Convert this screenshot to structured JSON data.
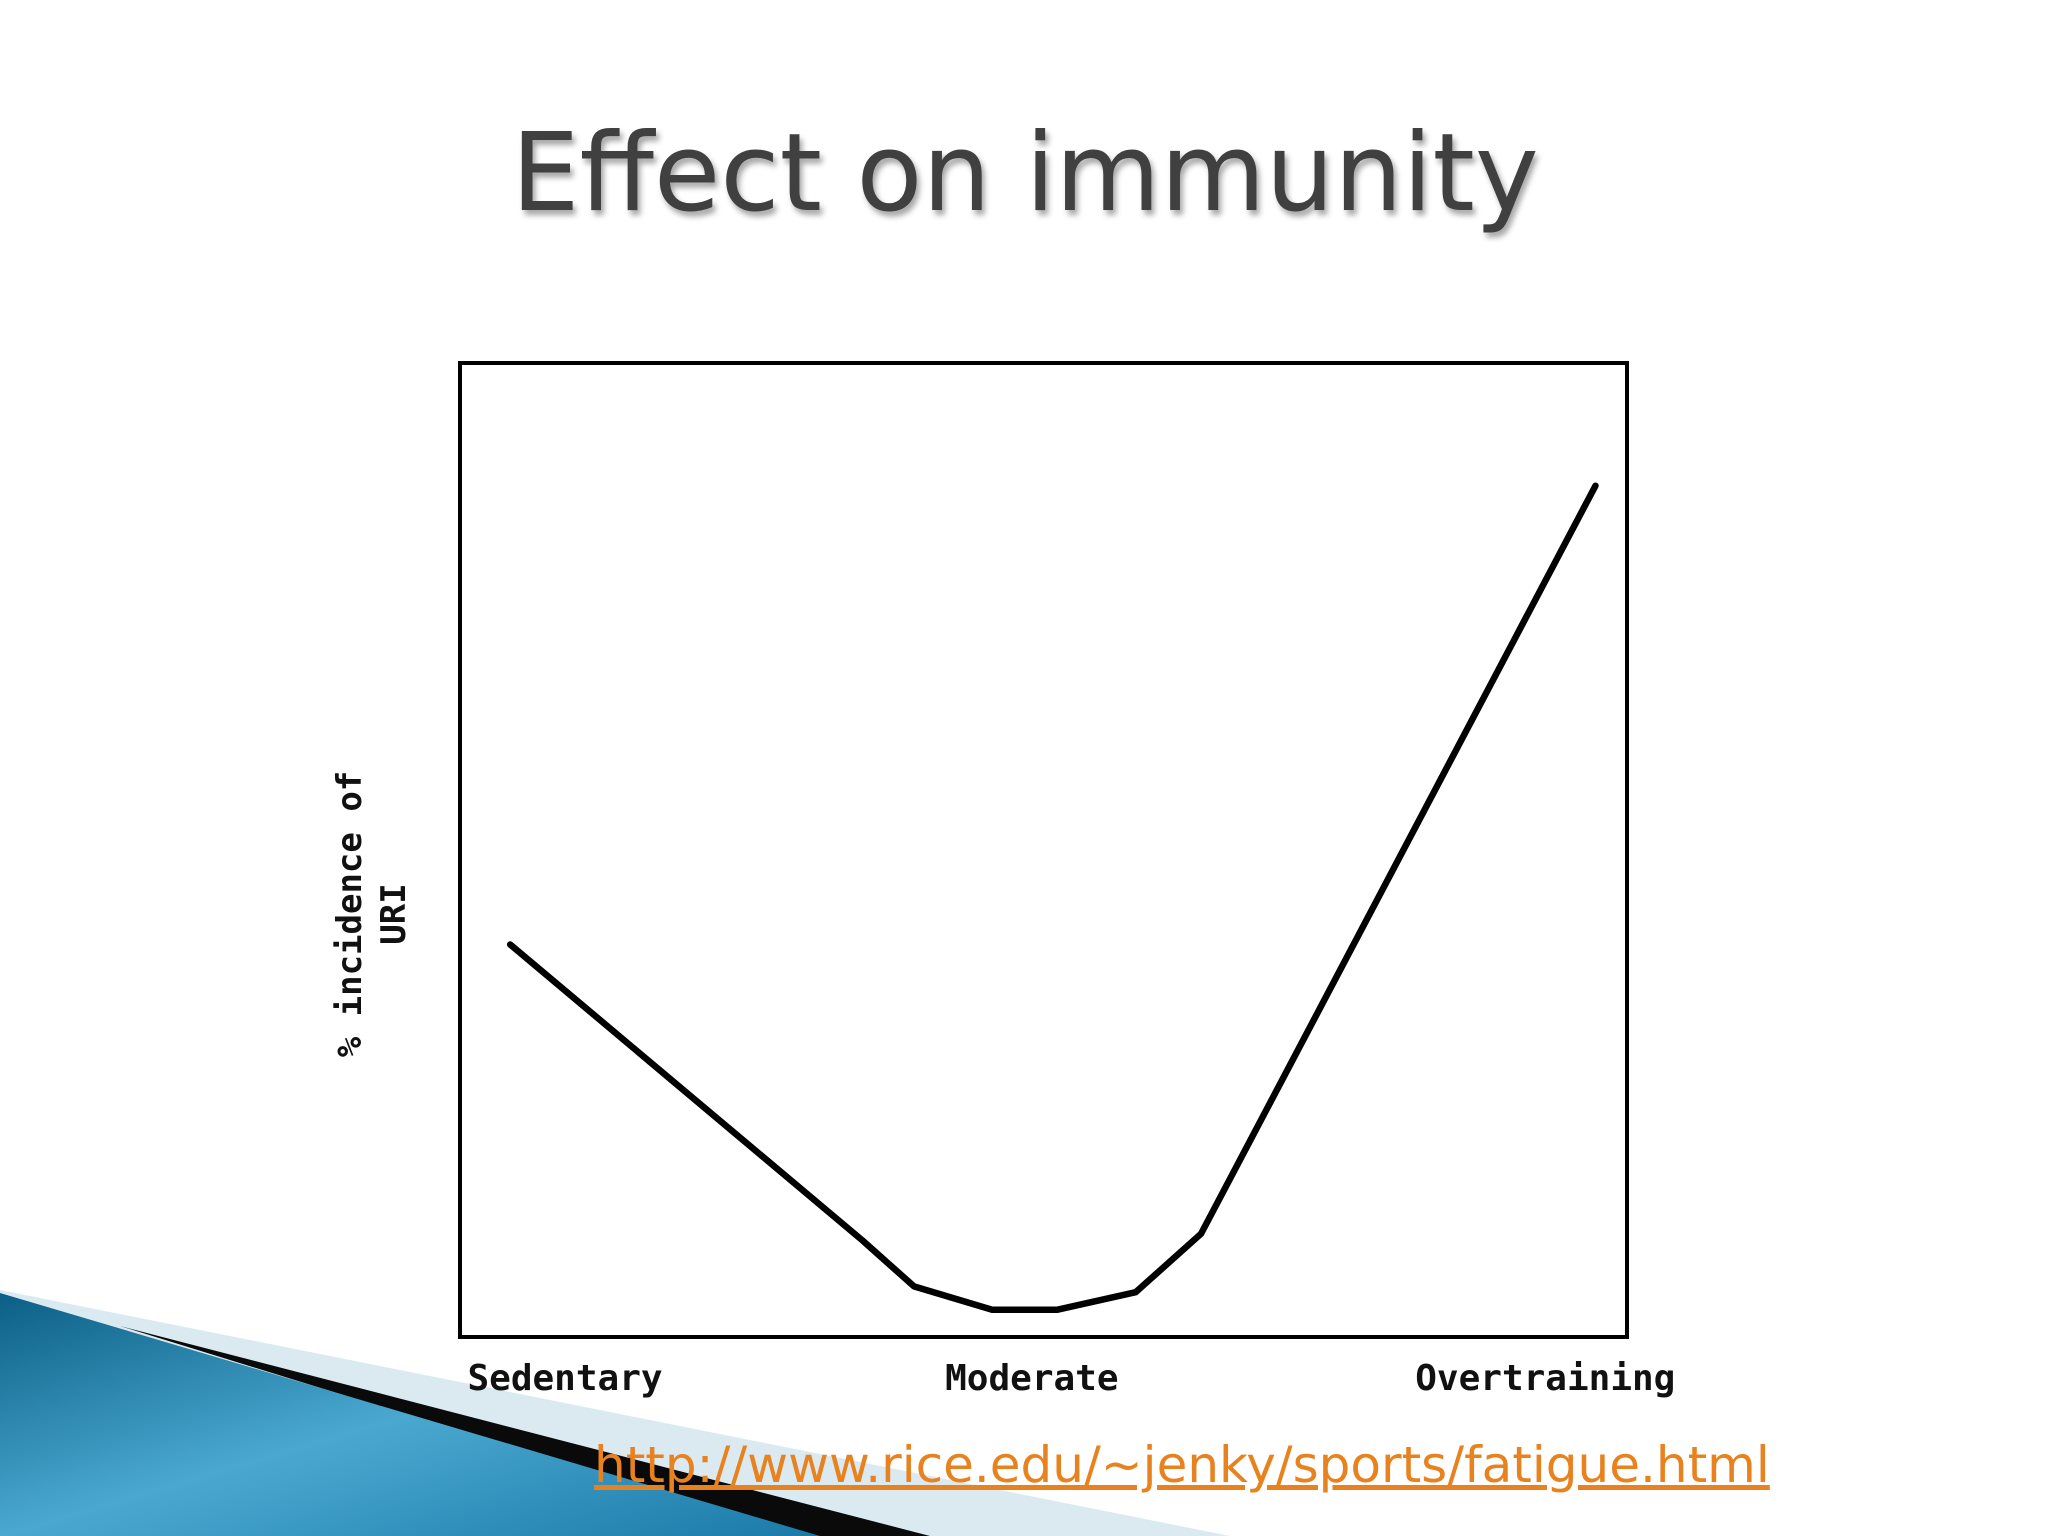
{
  "chart_data": {
    "type": "line",
    "title": "Effect on immunity",
    "y_label": "% incidence of URI",
    "x": [
      4.3,
      34.5,
      38.9,
      45.6,
      51.2,
      57.9,
      63.5,
      97.3
    ],
    "series": [
      {
        "color": "#000000",
        "values": [
          40.3,
          9.9,
          5.2,
          2.8,
          2.8,
          4.6,
          10.6,
          87.4
        ]
      }
    ],
    "xlim": [
      0,
      100
    ],
    "ylim": [
      0,
      100
    ],
    "xticks": [
      {
        "value": 9,
        "label": "Sedentary"
      },
      {
        "value": 49,
        "label": "Moderate"
      },
      {
        "value": 93,
        "label": "Overtraining"
      }
    ],
    "source": "http://www.rice.edu/~jenky/sports/fatigue.html"
  }
}
